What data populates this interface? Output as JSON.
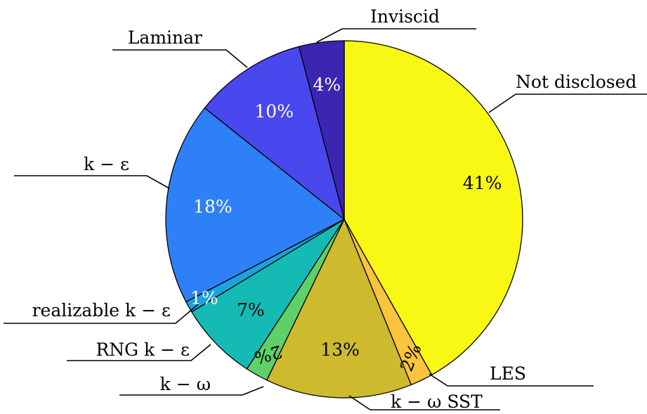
{
  "chart_data": {
    "type": "pie",
    "start_angle_deg": 90,
    "direction": "clockwise",
    "slices": [
      {
        "label": "Not disclosed",
        "value": 41,
        "pct_text": "41%",
        "color": "#f8f814",
        "text_color": "#000000"
      },
      {
        "label": "LES",
        "value": 2,
        "pct_text": "2%",
        "color": "#fbc43a",
        "text_color": "#000000"
      },
      {
        "label": "k − ω SST",
        "value": 13,
        "pct_text": "13%",
        "color": "#cdba2d",
        "text_color": "#000000"
      },
      {
        "label": "k − ω",
        "value": 2,
        "pct_text": "2%",
        "color": "#5fcf6a",
        "text_color": "#000000"
      },
      {
        "label": "RNG k − ε",
        "value": 7,
        "pct_text": "7%",
        "color": "#15bab4",
        "text_color": "#000000"
      },
      {
        "label": "realizable k − ε",
        "value": 1,
        "pct_text": "1%",
        "color": "#1aa3de",
        "text_color": "#ffffff"
      },
      {
        "label": "k − ε",
        "value": 18,
        "pct_text": "18%",
        "color": "#2e80f6",
        "text_color": "#ffffff"
      },
      {
        "label": "Laminar",
        "value": 10,
        "pct_text": "10%",
        "color": "#4848ee",
        "text_color": "#ffffff"
      },
      {
        "label": "Inviscid",
        "value": 4,
        "pct_text": "4%",
        "color": "#3a26b1",
        "text_color": "#ffffff"
      }
    ]
  }
}
